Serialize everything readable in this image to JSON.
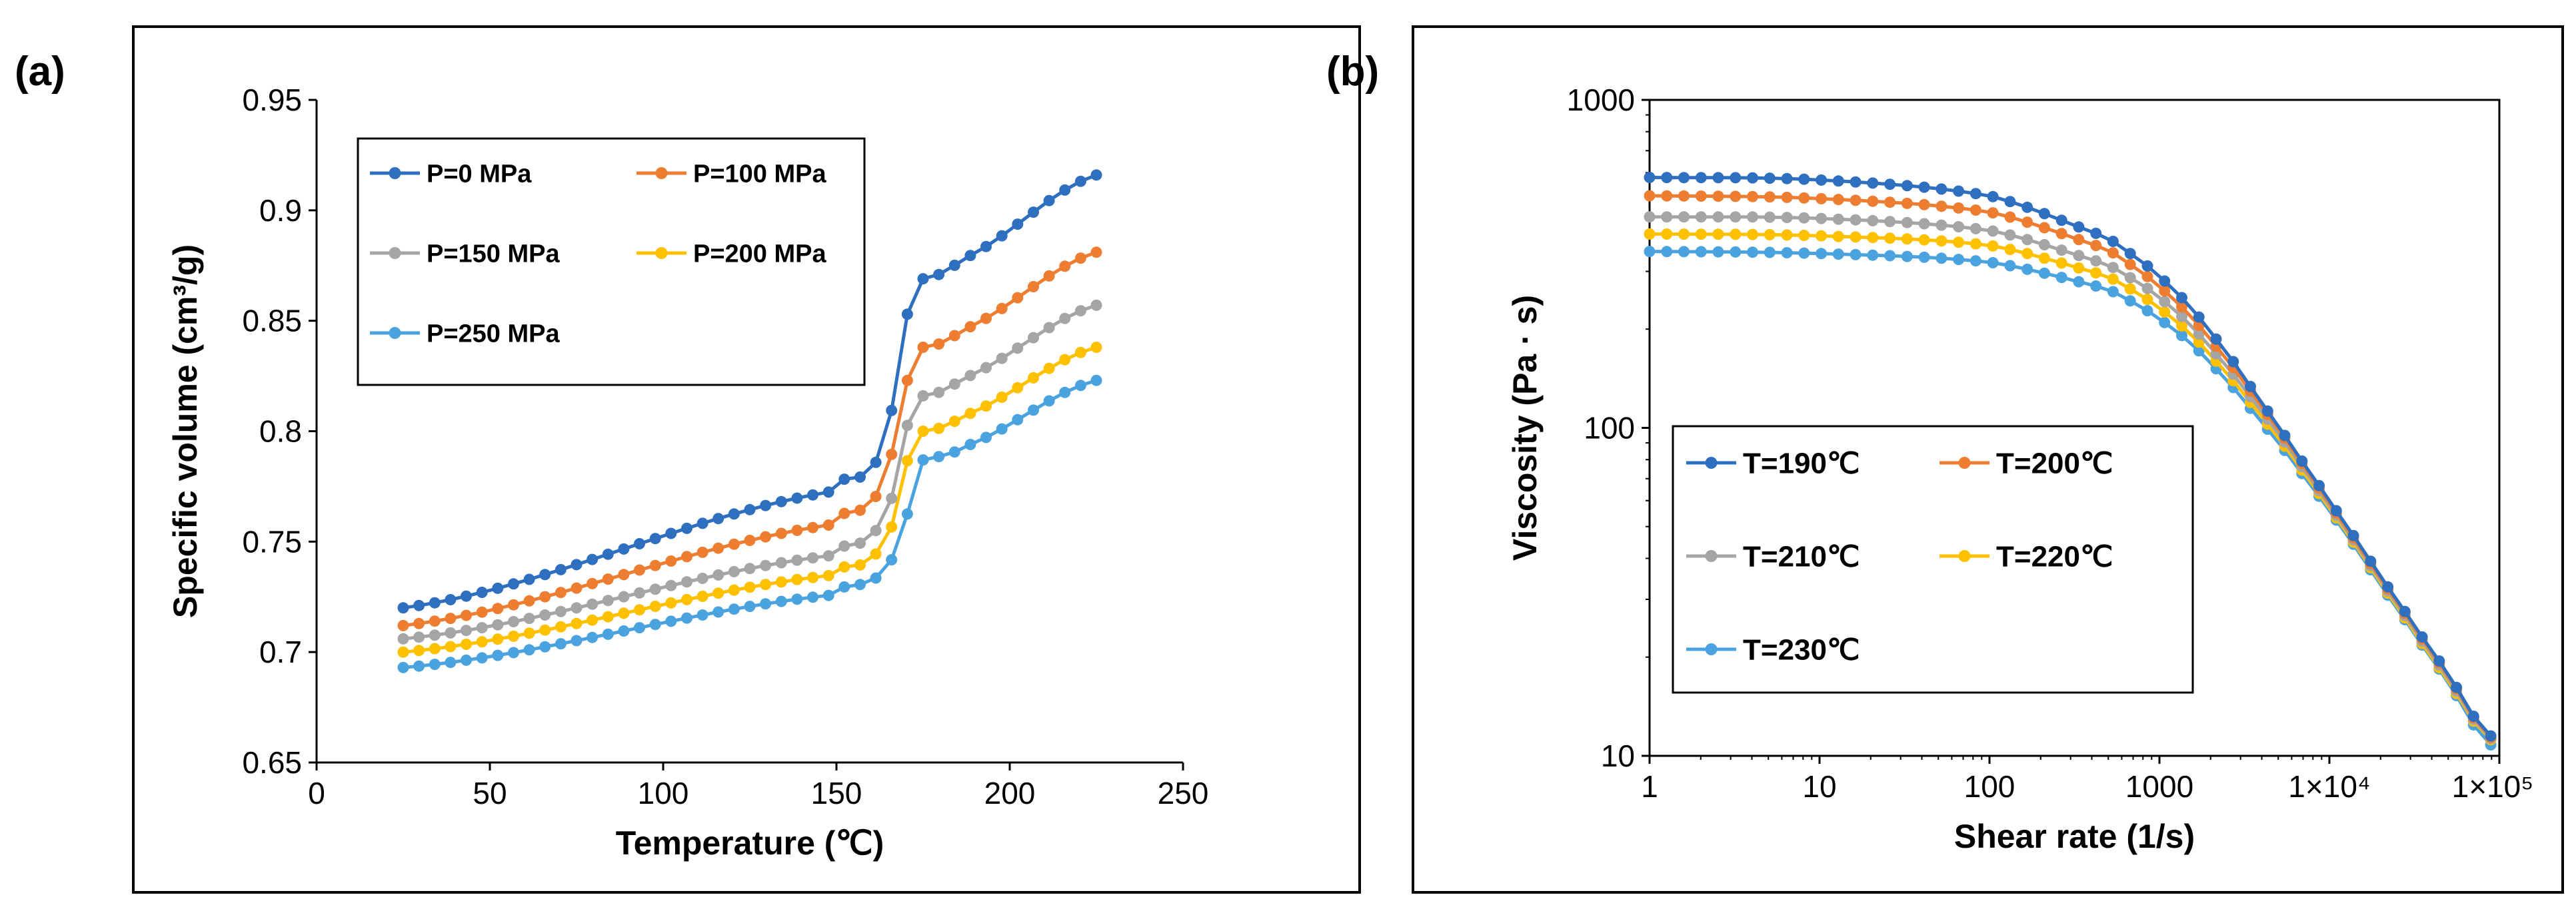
{
  "panels": [
    {
      "label": "(a)",
      "chart_data": {
        "type": "line",
        "xlabel": "Temperature  (℃)",
        "ylabel": "Specific volume  (cm³/g)",
        "xlim": [
          0,
          250
        ],
        "ylim": [
          0.65,
          0.95
        ],
        "x_scale": "linear",
        "y_scale": "linear",
        "xticks": [
          0,
          50,
          100,
          150,
          200,
          250
        ],
        "xtick_labels": [
          "0",
          "50",
          "100",
          "150",
          "200",
          "250"
        ],
        "yticks": [
          0.65,
          0.7,
          0.75,
          0.8,
          0.85,
          0.9,
          0.95
        ],
        "ytick_labels": [
          "0.65",
          "0.7",
          "0.75",
          "0.8",
          "0.85",
          "0.9",
          "0.95"
        ],
        "grid": false,
        "legend_position": "top-left",
        "legend_columns": 2,
        "series": [
          {
            "name": "P=0 MPa",
            "color": "#2e6fbf",
            "x": [
              25,
              150,
              158,
              163,
              166,
              168,
              170,
              172,
              175,
              185,
              225
            ],
            "y": [
              0.72,
              0.773,
              0.78,
              0.79,
              0.81,
              0.83,
              0.85,
              0.86,
              0.869,
              0.877,
              0.916
            ]
          },
          {
            "name": "P=100 MPa",
            "color": "#ed7d31",
            "x": [
              25,
              150,
              158,
              163,
              166,
              168,
              170,
              172,
              175,
              185,
              225
            ],
            "y": [
              0.712,
              0.758,
              0.765,
              0.774,
              0.79,
              0.806,
              0.82,
              0.832,
              0.838,
              0.845,
              0.881
            ]
          },
          {
            "name": "P=150 MPa",
            "color": "#a5a5a5",
            "x": [
              25,
              150,
              158,
              163,
              166,
              168,
              170,
              172,
              175,
              185,
              225
            ],
            "y": [
              0.706,
              0.744,
              0.75,
              0.758,
              0.77,
              0.786,
              0.8,
              0.81,
              0.816,
              0.823,
              0.857
            ]
          },
          {
            "name": "P=200 MPa",
            "color": "#ffc000",
            "x": [
              25,
              150,
              158,
              163,
              166,
              168,
              170,
              172,
              175,
              185,
              225
            ],
            "y": [
              0.7,
              0.735,
              0.74,
              0.747,
              0.757,
              0.77,
              0.784,
              0.794,
              0.8,
              0.806,
              0.838
            ]
          },
          {
            "name": "P=250 MPa",
            "color": "#4aa3df",
            "x": [
              25,
              150,
              158,
              163,
              166,
              168,
              170,
              172,
              175,
              185,
              225
            ],
            "y": [
              0.693,
              0.726,
              0.731,
              0.735,
              0.742,
              0.75,
              0.76,
              0.772,
              0.787,
              0.792,
              0.823
            ]
          }
        ]
      }
    },
    {
      "label": "(b)",
      "chart_data": {
        "type": "line",
        "xlabel": "Shear rate  (1/s)",
        "ylabel": "Viscosity  (Pa · s)",
        "xlim": [
          1,
          100000
        ],
        "ylim": [
          10,
          1000
        ],
        "x_scale": "log",
        "y_scale": "log",
        "xticks": [
          1,
          10,
          100,
          1000,
          10000,
          100000
        ],
        "xtick_labels": [
          "1",
          "10",
          "100",
          "1000",
          "1×10⁴",
          "1×10⁵"
        ],
        "yticks": [
          10,
          100,
          1000
        ],
        "ytick_labels": [
          "10",
          "100",
          "1000"
        ],
        "grid": false,
        "legend_position": "bottom-left",
        "legend_columns": 2,
        "series": [
          {
            "name": "T=190℃",
            "color": "#2e6fbf",
            "x": [
              1,
              10,
              100,
              500,
              1000,
              2000,
              5000,
              10000,
              20000,
              50000,
              89000
            ],
            "y": [
              580,
              570,
              510,
              380,
              290,
              195,
              102,
              60,
              35,
              18,
              11.5
            ]
          },
          {
            "name": "T=200℃",
            "color": "#ed7d31",
            "x": [
              1,
              10,
              100,
              500,
              1000,
              2000,
              5000,
              10000,
              20000,
              50000,
              89000
            ],
            "y": [
              510,
              500,
              455,
              350,
              270,
              185,
              100,
              59,
              34.5,
              17.8,
              11.4
            ]
          },
          {
            "name": "T=210℃",
            "color": "#a5a5a5",
            "x": [
              1,
              10,
              100,
              500,
              1000,
              2000,
              5000,
              10000,
              20000,
              50000,
              89000
            ],
            "y": [
              440,
              435,
              400,
              315,
              250,
              175,
              97,
              58,
              34,
              17.5,
              11.3
            ]
          },
          {
            "name": "T=220℃",
            "color": "#ffc000",
            "x": [
              1,
              10,
              100,
              500,
              1000,
              2000,
              5000,
              10000,
              20000,
              50000,
              89000
            ],
            "y": [
              390,
              385,
              360,
              290,
              232,
              166,
              94,
              57,
              33.5,
              17.2,
              11.2
            ]
          },
          {
            "name": "T=230℃",
            "color": "#4aa3df",
            "x": [
              1,
              10,
              100,
              500,
              1000,
              2000,
              5000,
              10000,
              20000,
              50000,
              89000
            ],
            "y": [
              345,
              340,
              320,
              265,
              215,
              157,
              91,
              56,
              33,
              17,
              10.8
            ]
          }
        ]
      }
    }
  ]
}
